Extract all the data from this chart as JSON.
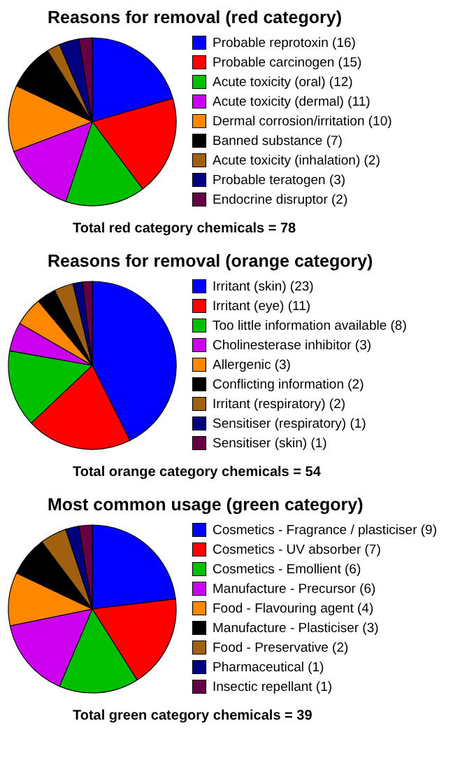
{
  "chart_data": [
    {
      "type": "pie",
      "title": "Reasons for removal (red category)",
      "categories": [
        "Probable reprotoxin (16)",
        "Probable carcinogen (15)",
        "Acute toxicity (oral) (12)",
        "Acute toxicity (dermal) (11)",
        "Dermal corrosion/irritation (10)",
        "Banned substance (7)",
        "Acute toxicity (inhalation) (2)",
        "Probable teratogen (3)",
        "Endocrine disruptor (2)"
      ],
      "values": [
        16,
        15,
        12,
        11,
        10,
        7,
        2,
        3,
        2
      ],
      "colors": [
        "#0000ff",
        "#ff0000",
        "#00c000",
        "#cc00ee",
        "#ff8800",
        "#000000",
        "#a0600f",
        "#000080",
        "#660044"
      ],
      "annotations": [
        "Total red category chemicals = 78"
      ],
      "legend": "right"
    },
    {
      "type": "pie",
      "title": "Reasons for removal (orange category)",
      "categories": [
        "Irritant (skin) (23)",
        "Irritant (eye) (11)",
        "Too little information available (8)",
        "Cholinesterase inhibitor (3)",
        "Allergenic (3)",
        "Conflicting information (2)",
        "Irritant (respiratory) (2)",
        "Sensitiser (respiratory) (1)",
        "Sensitiser (skin) (1)"
      ],
      "values": [
        23,
        11,
        8,
        3,
        3,
        2,
        2,
        1,
        1
      ],
      "colors": [
        "#0000ff",
        "#ff0000",
        "#00c000",
        "#cc00ee",
        "#ff8800",
        "#000000",
        "#a0600f",
        "#000080",
        "#660044"
      ],
      "annotations": [
        "Total orange category chemicals = 54"
      ],
      "legend": "right"
    },
    {
      "type": "pie",
      "title": "Most common usage (green category)",
      "categories": [
        "Cosmetics - Fragrance / plasticiser (9)",
        "Cosmetics - UV absorber (7)",
        "Cosmetics - Emollient (6)",
        "Manufacture - Precursor (6)",
        "Food - Flavouring agent (4)",
        "Manufacture - Plasticiser (3)",
        "Food - Preservative (2)",
        "Pharmaceutical (1)",
        "Insectic repellant (1)"
      ],
      "values": [
        9,
        7,
        6,
        6,
        4,
        3,
        2,
        1,
        1
      ],
      "colors": [
        "#0000ff",
        "#ff0000",
        "#00c000",
        "#cc00ee",
        "#ff8800",
        "#000000",
        "#a0600f",
        "#000080",
        "#660044"
      ],
      "annotations": [
        "Total green category chemicals = 39"
      ],
      "legend": "right"
    }
  ]
}
